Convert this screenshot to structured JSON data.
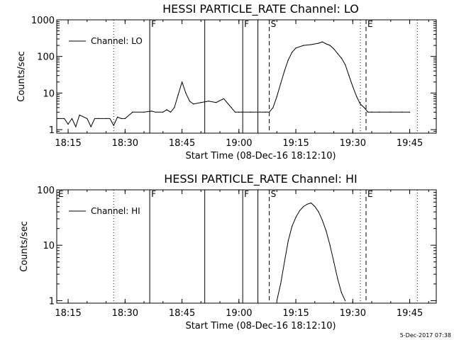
{
  "footer_timestamp": "5-Dec-2017 07:38",
  "chart_data": [
    {
      "type": "line",
      "title": "HESSI PARTICLE_RATE Channel: LO",
      "xlabel": "Start Time (08-Dec-16 18:12:10)",
      "ylabel": "Counts/sec",
      "yscale": "log",
      "ylim": [
        0.8,
        1000
      ],
      "xlim": [
        "18:12",
        "19:52"
      ],
      "xticks": [
        "18:15",
        "18:30",
        "18:45",
        "19:00",
        "19:15",
        "19:30",
        "19:45"
      ],
      "yticks": [
        "1",
        "10",
        "100",
        "1000"
      ],
      "legend": {
        "placement": "top-left",
        "entries": [
          "Channel: LO"
        ]
      },
      "series": [
        {
          "name": "Channel: LO",
          "x": [
            "18:12",
            "18:14",
            "18:15",
            "18:16",
            "18:17",
            "18:18",
            "18:20",
            "18:21",
            "18:22",
            "18:23",
            "18:25",
            "18:26",
            "18:27",
            "18:28",
            "18:29",
            "18:30",
            "18:32",
            "18:35",
            "18:37",
            "18:38",
            "18:40",
            "18:41",
            "18:42",
            "18:43",
            "18:44",
            "18:45",
            "18:46",
            "18:47",
            "18:48",
            "18:50",
            "18:52",
            "18:54",
            "18:56",
            "18:58",
            "18:59",
            "19:00",
            "19:01",
            "19:03",
            "19:05",
            "19:07",
            "19:08",
            "19:09",
            "19:10",
            "19:11",
            "19:12",
            "19:13",
            "19:14",
            "19:15",
            "19:17",
            "19:19",
            "19:21",
            "19:22",
            "19:23",
            "19:24",
            "19:25",
            "19:26",
            "19:27",
            "19:28",
            "19:29",
            "19:30",
            "19:31",
            "19:32",
            "19:33",
            "19:34",
            "19:35",
            "19:37",
            "19:40",
            "19:43",
            "19:45"
          ],
          "y": [
            2,
            2,
            1.4,
            2,
            1.2,
            2.5,
            2,
            1.2,
            2,
            2,
            2,
            2,
            1.3,
            2.2,
            2,
            2,
            3,
            3,
            3.2,
            3,
            3,
            3.5,
            3,
            4,
            9,
            20,
            10,
            6,
            5,
            5.5,
            6,
            5.5,
            7,
            4,
            3,
            3,
            3,
            3,
            3,
            3,
            3,
            4,
            8,
            18,
            40,
            80,
            130,
            170,
            200,
            210,
            230,
            250,
            220,
            200,
            160,
            120,
            90,
            60,
            30,
            15,
            8,
            5,
            4,
            3,
            3,
            3,
            3,
            3,
            3
          ]
        }
      ],
      "annotations": [
        {
          "label": "F",
          "x": "18:36.5",
          "style": "solid"
        },
        {
          "label": "",
          "x": "18:51",
          "style": "solid"
        },
        {
          "label": "F",
          "x": "19:01",
          "style": "solid"
        },
        {
          "label": "",
          "x": "19:05",
          "style": "solid"
        },
        {
          "label": "S",
          "x": "19:08",
          "style": "dashed"
        },
        {
          "label": "E",
          "x": "19:33.5",
          "style": "dashed"
        },
        {
          "label": "",
          "x": "18:27",
          "style": "dotted"
        },
        {
          "label": "",
          "x": "19:32",
          "style": "dotted"
        },
        {
          "label": "",
          "x": "19:47",
          "style": "dotted"
        }
      ]
    },
    {
      "type": "line",
      "title": "HESSI PARTICLE_RATE Channel: HI",
      "xlabel": "Start Time (08-Dec-16 18:12:10)",
      "ylabel": "Counts/sec",
      "yscale": "log",
      "ylim": [
        0.9,
        100
      ],
      "xlim": [
        "18:12",
        "19:52"
      ],
      "xticks": [
        "18:15",
        "18:30",
        "18:45",
        "19:00",
        "19:15",
        "19:30",
        "19:45"
      ],
      "yticks": [
        "1",
        "10",
        "100"
      ],
      "legend": {
        "placement": "top-left",
        "entries": [
          "Channel: HI"
        ]
      },
      "series": [
        {
          "name": "Channel: HI",
          "x": [
            "19:10",
            "19:11",
            "19:12",
            "19:13",
            "19:14",
            "19:15",
            "19:16",
            "19:17",
            "19:18",
            "19:19",
            "19:20",
            "19:21",
            "19:22",
            "19:23",
            "19:24",
            "19:25",
            "19:26",
            "19:27",
            "19:28"
          ],
          "y": [
            1,
            2,
            5,
            12,
            22,
            32,
            42,
            50,
            55,
            58,
            50,
            40,
            28,
            18,
            10,
            5,
            2.5,
            1.4,
            1
          ]
        }
      ],
      "annotations": [
        {
          "label": "E",
          "x": "18:12",
          "style": "solid"
        },
        {
          "label": "F",
          "x": "18:36.5",
          "style": "solid"
        },
        {
          "label": "",
          "x": "18:51",
          "style": "solid"
        },
        {
          "label": "F",
          "x": "19:01",
          "style": "solid"
        },
        {
          "label": "",
          "x": "19:05",
          "style": "solid"
        },
        {
          "label": "S",
          "x": "19:08",
          "style": "dashed"
        },
        {
          "label": "E",
          "x": "19:33.5",
          "style": "dashed"
        },
        {
          "label": "",
          "x": "18:27",
          "style": "dotted"
        },
        {
          "label": "",
          "x": "19:32",
          "style": "dotted"
        },
        {
          "label": "",
          "x": "19:47",
          "style": "dotted"
        }
      ]
    }
  ]
}
